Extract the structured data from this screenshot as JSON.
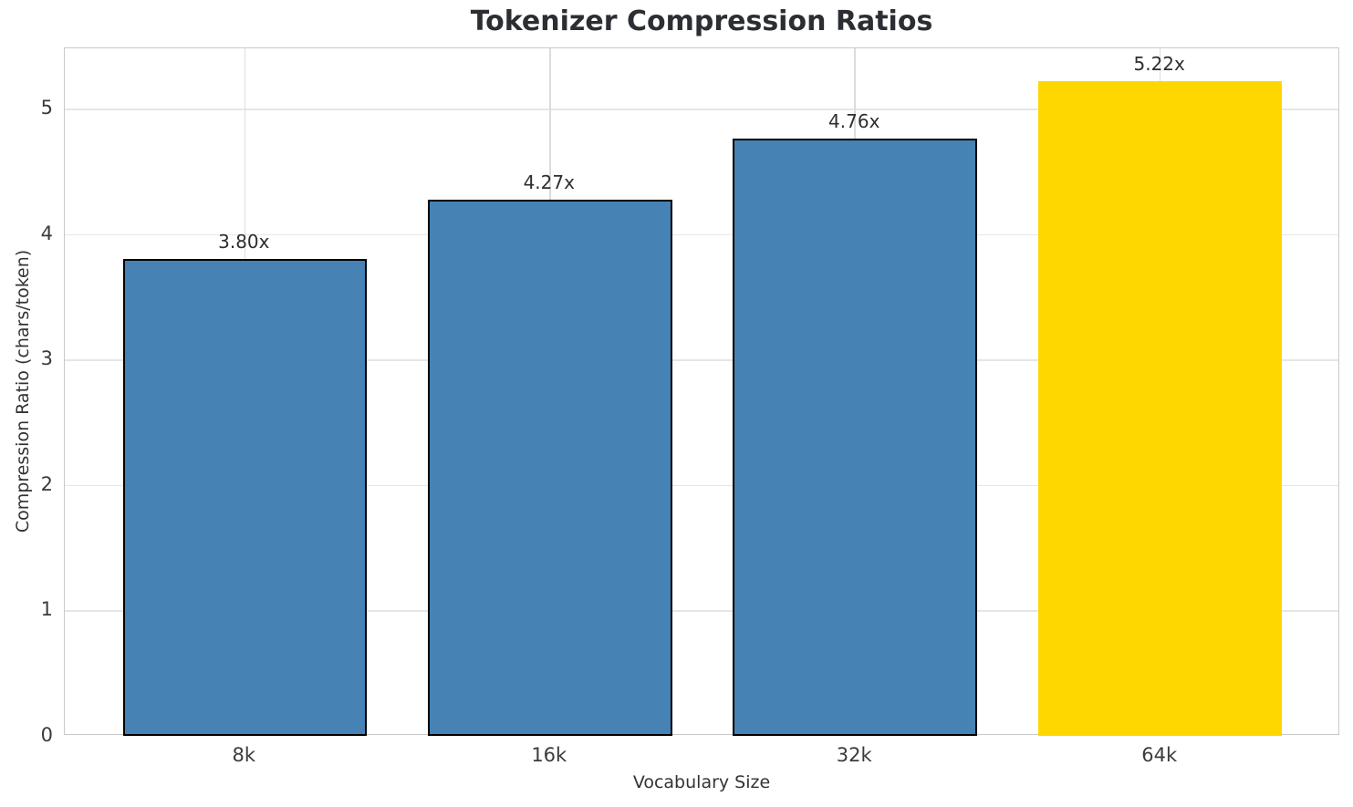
{
  "chart_data": {
    "type": "bar",
    "title": "Tokenizer Compression Ratios",
    "xlabel": "Vocabulary Size",
    "ylabel": "Compression Ratio (chars/token)",
    "categories": [
      "8k",
      "16k",
      "32k",
      "64k"
    ],
    "values": [
      3.8,
      4.27,
      4.76,
      5.22
    ],
    "bar_labels": [
      "3.80x",
      "4.27x",
      "4.76x",
      "5.22x"
    ],
    "bar_colors": [
      "#4682B4",
      "#4682B4",
      "#4682B4",
      "#FFD700"
    ],
    "bar_edge_colors": [
      "#000000",
      "#000000",
      "#000000",
      "none"
    ],
    "yticks": [
      "0",
      "1",
      "2",
      "3",
      "4",
      "5"
    ],
    "ylim": [
      0,
      5.48
    ],
    "grid": true,
    "legend": false,
    "bar_width_fraction": 0.8
  },
  "colors": {
    "bar_blue": "#4682B4",
    "bar_gold": "#FFD700",
    "bar_edge": "#000000",
    "spine": "#c9c9c9",
    "grid_h": "#e6e6e6",
    "grid_v": "#dcdcdc",
    "title_text": "#2b2e33",
    "tick_text": "#3b3b3b"
  }
}
